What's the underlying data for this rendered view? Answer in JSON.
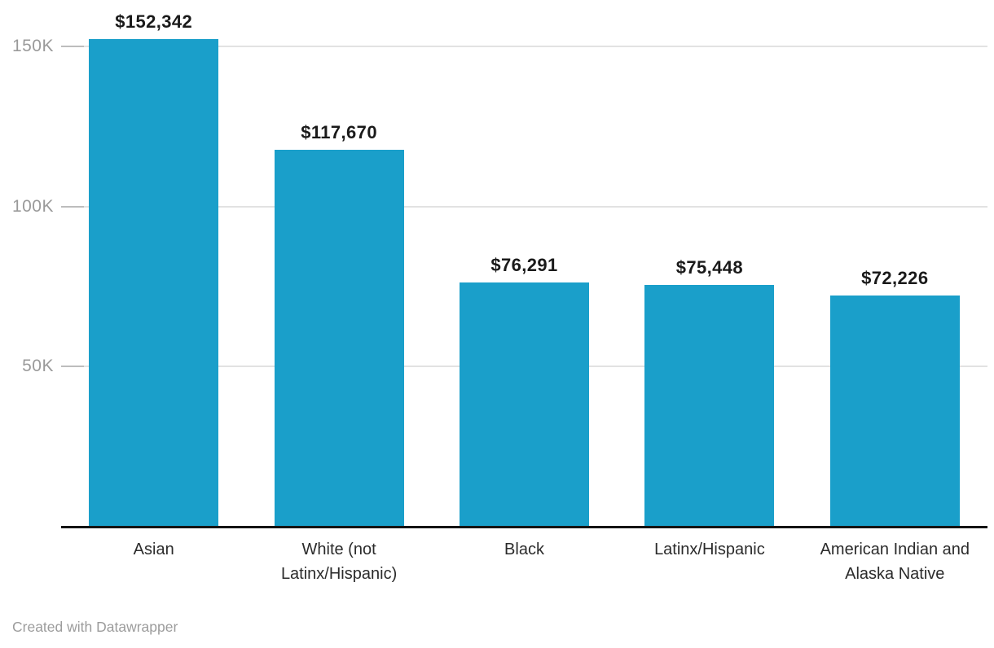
{
  "chart_data": {
    "type": "bar",
    "categories": [
      "Asian",
      "White (not Latinx/Hispanic)",
      "Black",
      "Latinx/Hispanic",
      "American Indian and Alaska Native"
    ],
    "values": [
      152342,
      117670,
      76291,
      75448,
      72226
    ],
    "value_labels": [
      "$152,342",
      "$117,670",
      "$76,291",
      "$75,448",
      "$72,226"
    ],
    "title": "",
    "xlabel": "",
    "ylabel": "",
    "ylim": [
      0,
      164000
    ],
    "y_ticks": [
      {
        "value": 50000,
        "label": "50K"
      },
      {
        "value": 100000,
        "label": "100K"
      },
      {
        "value": 150000,
        "label": "150K"
      }
    ],
    "grid": "horizontal",
    "legend": "none",
    "bar_color": "#1a9fca",
    "axis_color": "#141414",
    "gridline_color": "#e2e2e2",
    "tick_label_color": "#9a9a9a",
    "value_label_color": "#1a1a1a",
    "category_label_color": "#2b2b2b"
  },
  "footer": {
    "credit": "Created with Datawrapper"
  }
}
